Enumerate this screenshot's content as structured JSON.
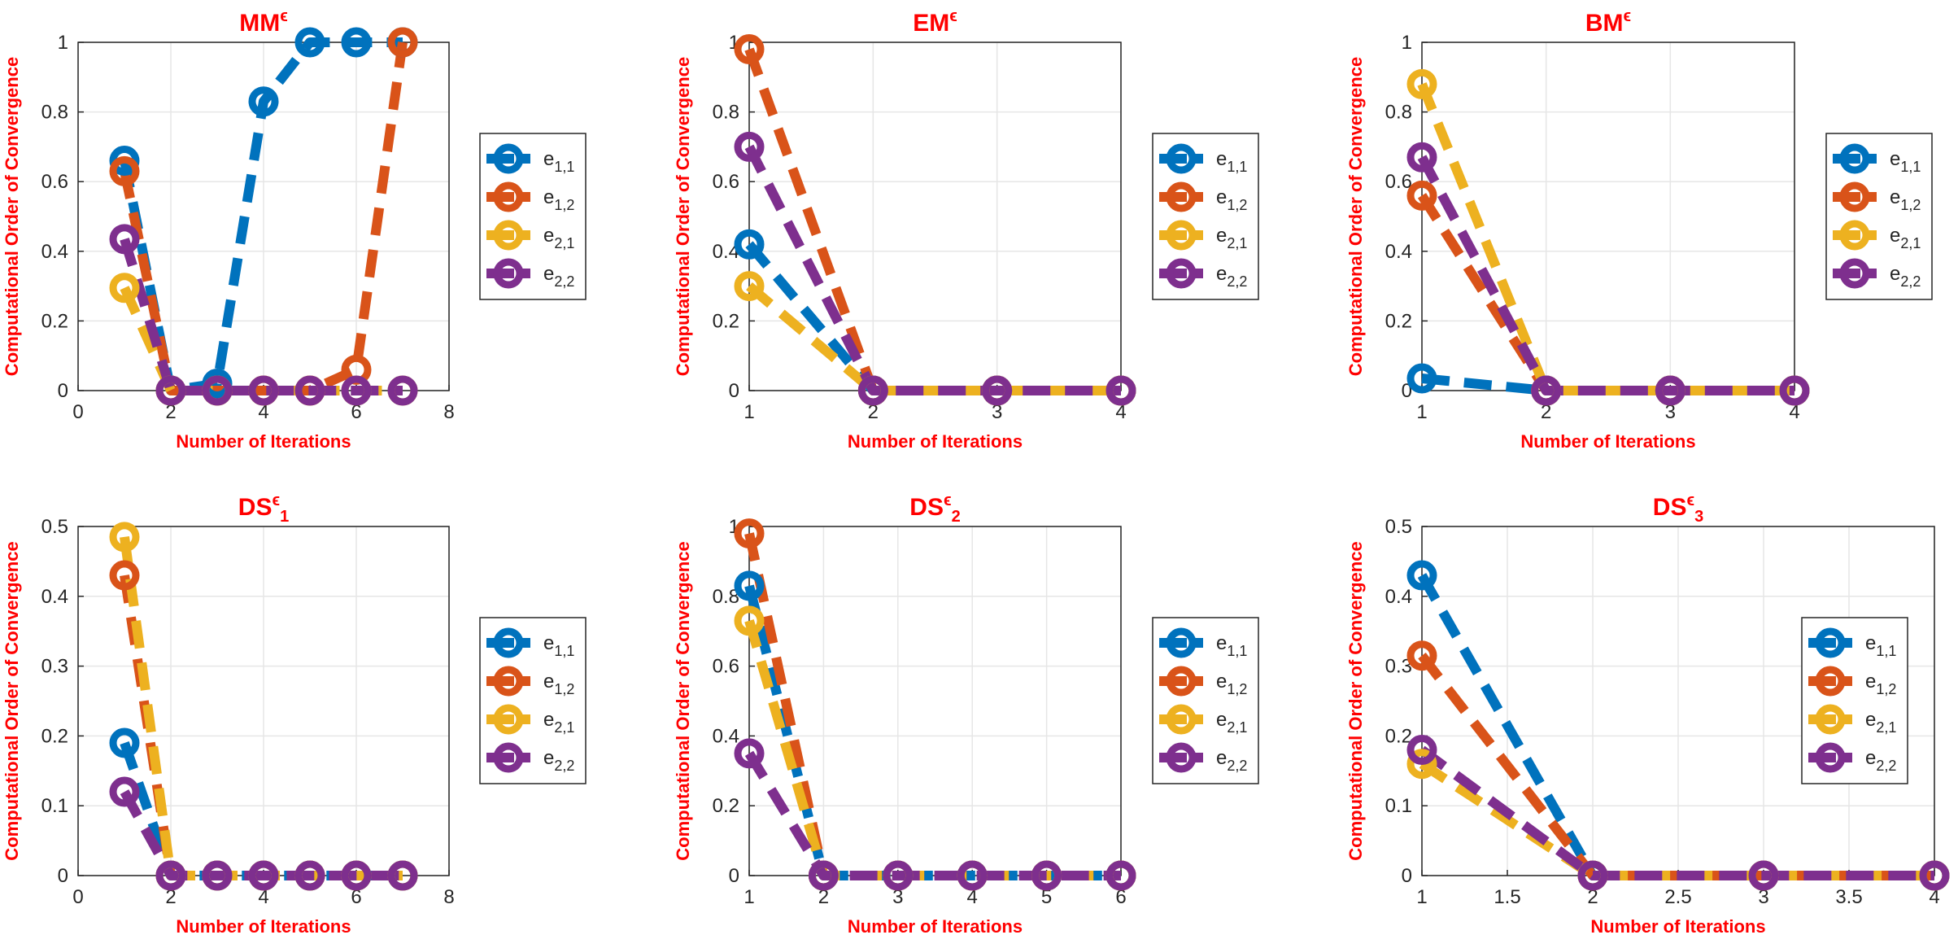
{
  "figure": {
    "name": "convergence-order-figure"
  },
  "colors": {
    "e11": "#0072BD",
    "e12": "#D95319",
    "e21": "#EDB120",
    "e22": "#7E2F8E",
    "label": "#FF0000",
    "grid": "#E6E6E6",
    "axis": "#262626"
  },
  "legend_labels": [
    {
      "base": "e",
      "sub": "1,1"
    },
    {
      "base": "e",
      "sub": "1,2"
    },
    {
      "base": "e",
      "sub": "2,1"
    },
    {
      "base": "e",
      "sub": "2,2"
    }
  ],
  "chart_data": [
    {
      "type": "line",
      "title": {
        "base": "MM",
        "sup": "ϵ",
        "sub": ""
      },
      "xlabel": "Number of Iterations",
      "ylabel": "Computational Order of Convergence",
      "xlim": [
        0,
        8
      ],
      "ylim": [
        0,
        1
      ],
      "xticks": [
        0,
        2,
        4,
        6,
        8
      ],
      "xtick_labels": [
        "0",
        "2",
        "4",
        "6",
        "8"
      ],
      "yticks": [
        0,
        0.2,
        0.4,
        0.6,
        0.8,
        1
      ],
      "ytick_labels": [
        "0",
        "0.2",
        "0.4",
        "0.6",
        "0.8",
        "1"
      ],
      "grid": true,
      "legend_position": "outside-right",
      "series": [
        {
          "name": "e1,1",
          "x": [
            1,
            2,
            3,
            4,
            5,
            6,
            7
          ],
          "values": [
            0.66,
            0,
            0.02,
            0.83,
            1,
            1,
            1
          ]
        },
        {
          "name": "e1,2",
          "x": [
            1,
            2,
            3,
            4,
            5,
            6,
            7
          ],
          "values": [
            0.63,
            0,
            0,
            0,
            0,
            0.06,
            1
          ]
        },
        {
          "name": "e2,1",
          "x": [
            1,
            2,
            3,
            4,
            5,
            6,
            7
          ],
          "values": [
            0.295,
            0,
            0,
            0,
            0,
            0,
            0
          ]
        },
        {
          "name": "e2,2",
          "x": [
            1,
            2,
            3,
            4,
            5,
            6,
            7
          ],
          "values": [
            0.435,
            0,
            0,
            0,
            0,
            0,
            0
          ]
        }
      ]
    },
    {
      "type": "line",
      "title": {
        "base": "EM",
        "sup": "ϵ",
        "sub": ""
      },
      "xlabel": "Number of Iterations",
      "ylabel": "Computational Order of Convergence",
      "xlim": [
        1,
        4
      ],
      "ylim": [
        0,
        1
      ],
      "xticks": [
        1,
        2,
        3,
        4
      ],
      "xtick_labels": [
        "1",
        "2",
        "3",
        "4"
      ],
      "yticks": [
        0,
        0.2,
        0.4,
        0.6,
        0.8,
        1
      ],
      "ytick_labels": [
        "0",
        "0.2",
        "0.4",
        "0.6",
        "0.8",
        "1"
      ],
      "grid": true,
      "legend_position": "outside-right",
      "series": [
        {
          "name": "e1,1",
          "x": [
            1,
            2,
            3,
            4
          ],
          "values": [
            0.42,
            0,
            0,
            0
          ]
        },
        {
          "name": "e1,2",
          "x": [
            1,
            2,
            3,
            4
          ],
          "values": [
            0.98,
            0,
            0,
            0
          ]
        },
        {
          "name": "e2,1",
          "x": [
            1,
            2,
            3,
            4
          ],
          "values": [
            0.3,
            0,
            0,
            0
          ]
        },
        {
          "name": "e2,2",
          "x": [
            1,
            2,
            3,
            4
          ],
          "values": [
            0.7,
            0,
            0,
            0
          ]
        }
      ]
    },
    {
      "type": "line",
      "title": {
        "base": "BM",
        "sup": "ϵ",
        "sub": ""
      },
      "xlabel": "Number of Iterations",
      "ylabel": "Computational Order of Convergence",
      "xlim": [
        1,
        4
      ],
      "ylim": [
        0,
        1
      ],
      "xticks": [
        1,
        2,
        3,
        4
      ],
      "xtick_labels": [
        "1",
        "2",
        "3",
        "4"
      ],
      "yticks": [
        0,
        0.2,
        0.4,
        0.6,
        0.8,
        1
      ],
      "ytick_labels": [
        "0",
        "0.2",
        "0.4",
        "0.6",
        "0.8",
        "1"
      ],
      "grid": true,
      "legend_position": "outside-right",
      "series": [
        {
          "name": "e1,1",
          "x": [
            1,
            2,
            3,
            4
          ],
          "values": [
            0.035,
            0,
            0,
            0
          ]
        },
        {
          "name": "e1,2",
          "x": [
            1,
            2,
            3,
            4
          ],
          "values": [
            0.56,
            0,
            0,
            0
          ]
        },
        {
          "name": "e2,1",
          "x": [
            1,
            2,
            3,
            4
          ],
          "values": [
            0.88,
            0,
            0,
            0
          ]
        },
        {
          "name": "e2,2",
          "x": [
            1,
            2,
            3,
            4
          ],
          "values": [
            0.67,
            0,
            0,
            0
          ]
        }
      ]
    },
    {
      "type": "line",
      "title": {
        "base": "DS",
        "sup": "ϵ",
        "sub": "1"
      },
      "xlabel": "Number of Iterations",
      "ylabel": "Computational Order of Convergence",
      "xlim": [
        0,
        8
      ],
      "ylim": [
        0,
        0.5
      ],
      "xticks": [
        0,
        2,
        4,
        6,
        8
      ],
      "xtick_labels": [
        "0",
        "2",
        "4",
        "6",
        "8"
      ],
      "yticks": [
        0,
        0.1,
        0.2,
        0.3,
        0.4,
        0.5
      ],
      "ytick_labels": [
        "0",
        "0.1",
        "0.2",
        "0.3",
        "0.4",
        "0.5"
      ],
      "grid": true,
      "legend_position": "outside-right",
      "series": [
        {
          "name": "e1,1",
          "x": [
            1,
            2,
            3,
            4,
            5,
            6,
            7
          ],
          "values": [
            0.19,
            0,
            0,
            0,
            0,
            0,
            0
          ]
        },
        {
          "name": "e1,2",
          "x": [
            1,
            2,
            3,
            4,
            5,
            6,
            7
          ],
          "values": [
            0.43,
            0,
            0,
            0,
            0,
            0,
            0
          ]
        },
        {
          "name": "e2,1",
          "x": [
            1,
            2,
            3,
            4,
            5,
            6,
            7
          ],
          "values": [
            0.485,
            0,
            0,
            0,
            0,
            0,
            0
          ]
        },
        {
          "name": "e2,2",
          "x": [
            1,
            2,
            3,
            4,
            5,
            6,
            7
          ],
          "values": [
            0.12,
            0,
            0,
            0,
            0,
            0,
            0
          ]
        }
      ]
    },
    {
      "type": "line",
      "title": {
        "base": "DS",
        "sup": "ϵ",
        "sub": "2"
      },
      "xlabel": "Number of Iterations",
      "ylabel": "Computational Order of Convergence",
      "xlim": [
        1,
        6
      ],
      "ylim": [
        0,
        1
      ],
      "xticks": [
        1,
        2,
        3,
        4,
        5,
        6
      ],
      "xtick_labels": [
        "1",
        "2",
        "3",
        "4",
        "5",
        "6"
      ],
      "yticks": [
        0,
        0.2,
        0.4,
        0.6,
        0.8,
        1
      ],
      "ytick_labels": [
        "0",
        "0.2",
        "0.4",
        "0.6",
        "0.8",
        "1"
      ],
      "grid": true,
      "legend_position": "outside-right",
      "series": [
        {
          "name": "e1,1",
          "x": [
            1,
            2,
            3,
            4,
            5,
            6
          ],
          "values": [
            0.83,
            0,
            0,
            0,
            0,
            0
          ]
        },
        {
          "name": "e1,2",
          "x": [
            1,
            2,
            3,
            4,
            5,
            6
          ],
          "values": [
            0.98,
            0,
            0,
            0,
            0,
            0
          ]
        },
        {
          "name": "e2,1",
          "x": [
            1,
            2,
            3,
            4,
            5,
            6
          ],
          "values": [
            0.73,
            0,
            0,
            0,
            0,
            0
          ]
        },
        {
          "name": "e2,2",
          "x": [
            1,
            2,
            3,
            4,
            5,
            6
          ],
          "values": [
            0.35,
            0,
            0,
            0,
            0,
            0
          ]
        }
      ]
    },
    {
      "type": "line",
      "title": {
        "base": "DS",
        "sup": "ϵ",
        "sub": "3"
      },
      "xlabel": "Number of Iterations",
      "ylabel": "Computational Order of Convergence",
      "xlim": [
        1,
        4
      ],
      "ylim": [
        0,
        0.5
      ],
      "xticks": [
        1,
        1.5,
        2,
        2.5,
        3,
        3.5,
        4
      ],
      "xtick_labels": [
        "1",
        "1.5",
        "2",
        "2.5",
        "3",
        "3.5",
        "4"
      ],
      "yticks": [
        0,
        0.1,
        0.2,
        0.3,
        0.4,
        0.5
      ],
      "ytick_labels": [
        "0",
        "0.1",
        "0.2",
        "0.3",
        "0.4",
        "0.5"
      ],
      "grid": true,
      "legend_position": "inside-right",
      "series": [
        {
          "name": "e1,1",
          "x": [
            1,
            2,
            3,
            4
          ],
          "values": [
            0.43,
            0,
            0,
            0
          ]
        },
        {
          "name": "e1,2",
          "x": [
            1,
            2,
            3,
            4
          ],
          "values": [
            0.315,
            0,
            0,
            0
          ]
        },
        {
          "name": "e2,1",
          "x": [
            1,
            2,
            3,
            4
          ],
          "values": [
            0.16,
            0,
            0,
            0
          ]
        },
        {
          "name": "e2,2",
          "x": [
            1,
            2,
            3,
            4
          ],
          "values": [
            0.18,
            0,
            0,
            0
          ]
        }
      ]
    }
  ]
}
